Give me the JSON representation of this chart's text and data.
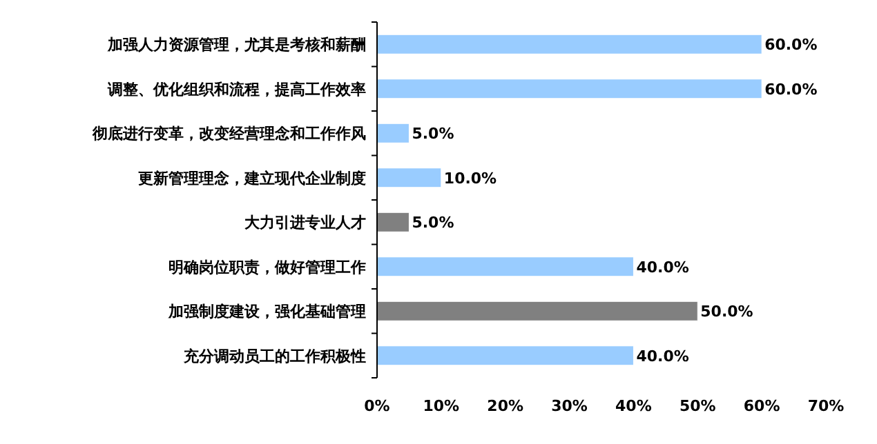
{
  "chart_data": {
    "type": "bar",
    "orientation": "horizontal",
    "categories": [
      "加强人力资源管理，尤其是考核和薪酬",
      "调整、优化组织和流程，提高工作效率",
      "彻底进行变革，改变经营理念和工作作风",
      "更新管理理念，建立现代企业制度",
      "大力引进专业人才",
      "明确岗位职责，做好管理工作",
      "加强制度建设，强化基础管理",
      "充分调动员工的工作积极性"
    ],
    "values": [
      60,
      60,
      5,
      10,
      5,
      40,
      50,
      40
    ],
    "colors": [
      "#99ccff",
      "#99ccff",
      "#99ccff",
      "#99ccff",
      "#808080",
      "#99ccff",
      "#808080",
      "#99ccff"
    ],
    "value_labels": [
      "60.0%",
      "60.0%",
      "5.0%",
      "10.0%",
      "5.0%",
      "40.0%",
      "50.0%",
      "40.0%"
    ],
    "xlim": [
      0,
      70
    ],
    "xticks": [
      {
        "value": 0,
        "label": "0%"
      },
      {
        "value": 10,
        "label": "10%"
      },
      {
        "value": 20,
        "label": "20%"
      },
      {
        "value": 30,
        "label": "30%"
      },
      {
        "value": 40,
        "label": "40%"
      },
      {
        "value": 50,
        "label": "50%"
      },
      {
        "value": 60,
        "label": "60%"
      },
      {
        "value": 70,
        "label": "70%"
      }
    ],
    "grid": false
  }
}
